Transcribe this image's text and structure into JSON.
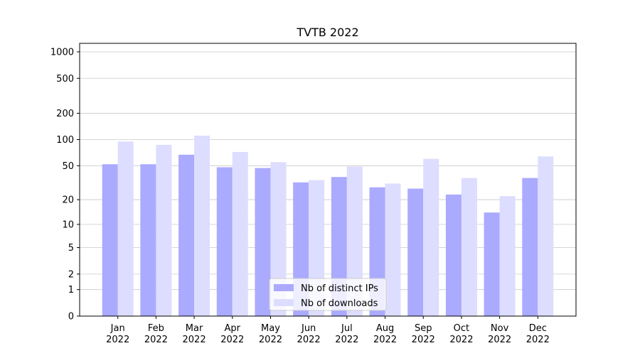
{
  "chart_data": {
    "type": "bar",
    "title": "TVTB 2022",
    "categories": [
      "Jan\n2022",
      "Feb\n2022",
      "Mar\n2022",
      "Apr\n2022",
      "May\n2022",
      "Jun\n2022",
      "Jul\n2022",
      "Aug\n2022",
      "Sep\n2022",
      "Oct\n2022",
      "Nov\n2022",
      "Dec\n2022"
    ],
    "series": [
      {
        "name": "Nb of distinct IPs",
        "color": "#aaaaff",
        "values": [
          52,
          52,
          67,
          48,
          47,
          32,
          37,
          28,
          27,
          23,
          14,
          36
        ]
      },
      {
        "name": "Nb of downloads",
        "color": "#ddddff",
        "values": [
          95,
          87,
          111,
          72,
          55,
          34,
          49,
          31,
          60,
          36,
          22,
          64
        ]
      }
    ],
    "yscale": "log1p",
    "ylim": [
      0,
      1250
    ],
    "yticks": [
      0,
      1,
      2,
      5,
      10,
      20,
      50,
      100,
      200,
      500,
      1000
    ],
    "grid": true,
    "legend": "lower center"
  }
}
